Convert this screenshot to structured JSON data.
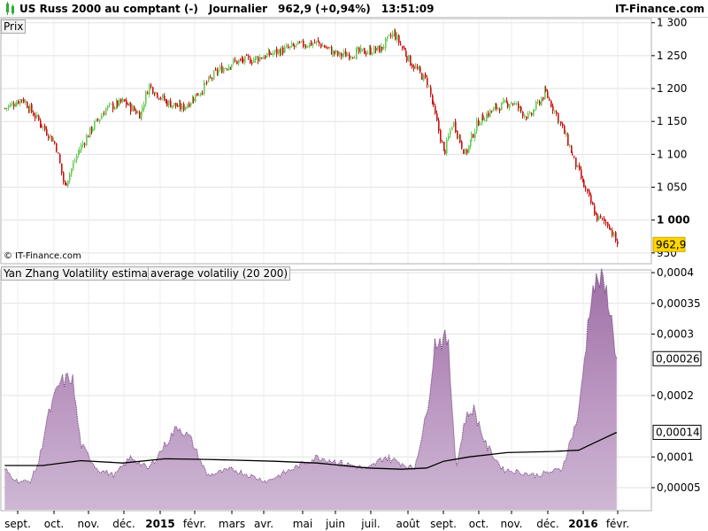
{
  "header": {
    "instrument": "US Russ 2000 au comptant (-)",
    "period": "Journalier",
    "price": "962,9 (+0,94%)",
    "time": "13:51:09",
    "brand": "IT-Finance.com"
  },
  "price_panel": {
    "label": "Prix",
    "copyright": "© IT-Finance.com",
    "last_value_tag": "962,9"
  },
  "volatility_panel": {
    "label_indicator": "Yan Zhang Volatility estimator",
    "label_average": "average volatiliy (20 200)",
    "value_tag_current": "0,00026",
    "value_tag_average": "0,00014"
  },
  "colors": {
    "up": "#66cc55",
    "down": "#cc1111",
    "area_fill": "#cdb7d3",
    "area_fill_dark": "#9e6fa6",
    "area_line": "#6b3a73",
    "tag": "#ffd700"
  },
  "chart_data": [
    {
      "type": "candlestick",
      "x_labels": [
        "sept.",
        "oct.",
        "nov.",
        "déc.",
        "2015",
        "févr.",
        "mars",
        "avr.",
        "mai",
        "juin",
        "juil.",
        "août",
        "sept.",
        "oct.",
        "nov.",
        "déc.",
        "2016",
        "févr."
      ],
      "y_ticks": [
        "1 300",
        "1 250",
        "1 200",
        "1 150",
        "1 100",
        "1 050",
        "1 000",
        "950"
      ],
      "ylim": [
        935,
        1305
      ],
      "grid": true,
      "series": [
        {
          "name": "Prix",
          "close_path": [
            [
              2014.66,
              1170
            ],
            [
              2014.7,
              1185
            ],
            [
              2014.74,
              1150
            ],
            [
              2014.78,
              1115
            ],
            [
              2014.8,
              1050
            ],
            [
              2014.83,
              1100
            ],
            [
              2014.86,
              1135
            ],
            [
              2014.9,
              1170
            ],
            [
              2014.94,
              1180
            ],
            [
              2014.98,
              1160
            ],
            [
              2015.0,
              1205
            ],
            [
              2015.04,
              1180
            ],
            [
              2015.08,
              1170
            ],
            [
              2015.12,
              1195
            ],
            [
              2015.16,
              1225
            ],
            [
              2015.2,
              1240
            ],
            [
              2015.25,
              1245
            ],
            [
              2015.3,
              1255
            ],
            [
              2015.35,
              1265
            ],
            [
              2015.4,
              1270
            ],
            [
              2015.45,
              1250
            ],
            [
              2015.5,
              1255
            ],
            [
              2015.55,
              1260
            ],
            [
              2015.58,
              1285
            ],
            [
              2015.62,
              1240
            ],
            [
              2015.66,
              1210
            ],
            [
              2015.7,
              1100
            ],
            [
              2015.72,
              1150
            ],
            [
              2015.75,
              1100
            ],
            [
              2015.78,
              1150
            ],
            [
              2015.82,
              1170
            ],
            [
              2015.86,
              1180
            ],
            [
              2015.9,
              1155
            ],
            [
              2015.94,
              1195
            ],
            [
              2015.98,
              1140
            ],
            [
              2016.02,
              1070
            ],
            [
              2016.06,
              1005
            ],
            [
              2016.09,
              993
            ],
            [
              2016.11,
              962.9
            ]
          ]
        }
      ]
    },
    {
      "type": "area",
      "y_ticks": [
        "0,0004",
        "0,00035",
        "0,0003",
        "0,0002",
        "0,0001",
        "0,00005"
      ],
      "ylim": [
        1.4e-05,
        0.000403
      ],
      "grid": true,
      "series": [
        {
          "name": "Yan Zhang Volatility estimator",
          "type": "area",
          "points": [
            [
              2014.66,
              8e-05
            ],
            [
              2014.69,
              6e-05
            ],
            [
              2014.72,
              6e-05
            ],
            [
              2014.74,
              9e-05
            ],
            [
              2014.76,
              0.00016
            ],
            [
              2014.79,
              0.00022
            ],
            [
              2014.82,
              0.00023
            ],
            [
              2014.84,
              0.00012
            ],
            [
              2014.88,
              8e-05
            ],
            [
              2014.92,
              7e-05
            ],
            [
              2014.96,
              0.0001
            ],
            [
              2015.0,
              8e-05
            ],
            [
              2015.04,
              0.00012
            ],
            [
              2015.07,
              0.00015
            ],
            [
              2015.1,
              0.00013
            ],
            [
              2015.14,
              7e-05
            ],
            [
              2015.2,
              8e-05
            ],
            [
              2015.28,
              6e-05
            ],
            [
              2015.34,
              8e-05
            ],
            [
              2015.4,
              0.0001
            ],
            [
              2015.46,
              9e-05
            ],
            [
              2015.52,
              8e-05
            ],
            [
              2015.56,
              0.0001
            ],
            [
              2015.6,
              9e-05
            ],
            [
              2015.63,
              8e-05
            ],
            [
              2015.66,
              0.00017
            ],
            [
              2015.68,
              0.00029
            ],
            [
              2015.71,
              0.00029
            ],
            [
              2015.73,
              8e-05
            ],
            [
              2015.75,
              0.00016
            ],
            [
              2015.77,
              0.00018
            ],
            [
              2015.8,
              0.00012
            ],
            [
              2015.84,
              8e-05
            ],
            [
              2015.92,
              7e-05
            ],
            [
              2015.98,
              8e-05
            ],
            [
              2016.02,
              0.00017
            ],
            [
              2016.05,
              0.00037
            ],
            [
              2016.07,
              0.00039
            ],
            [
              2016.09,
              0.00036
            ],
            [
              2016.11,
              0.00026
            ]
          ]
        },
        {
          "name": "average volatiliy (20 200)",
          "type": "line",
          "points": [
            [
              2014.66,
              8.6e-05
            ],
            [
              2014.75,
              8.6e-05
            ],
            [
              2014.84,
              9.4e-05
            ],
            [
              2014.94,
              9e-05
            ],
            [
              2015.04,
              9.7e-05
            ],
            [
              2015.14,
              9.6e-05
            ],
            [
              2015.3,
              9.3e-05
            ],
            [
              2015.4,
              9e-05
            ],
            [
              2015.52,
              8.2e-05
            ],
            [
              2015.6,
              8e-05
            ],
            [
              2015.66,
              8.2e-05
            ],
            [
              2015.7,
              9.3e-05
            ],
            [
              2015.76,
              0.0001
            ],
            [
              2015.85,
              0.000107
            ],
            [
              2015.96,
              0.000109
            ],
            [
              2016.02,
              0.000111
            ],
            [
              2016.06,
              0.000124
            ],
            [
              2016.11,
              0.00014
            ]
          ]
        }
      ]
    }
  ]
}
